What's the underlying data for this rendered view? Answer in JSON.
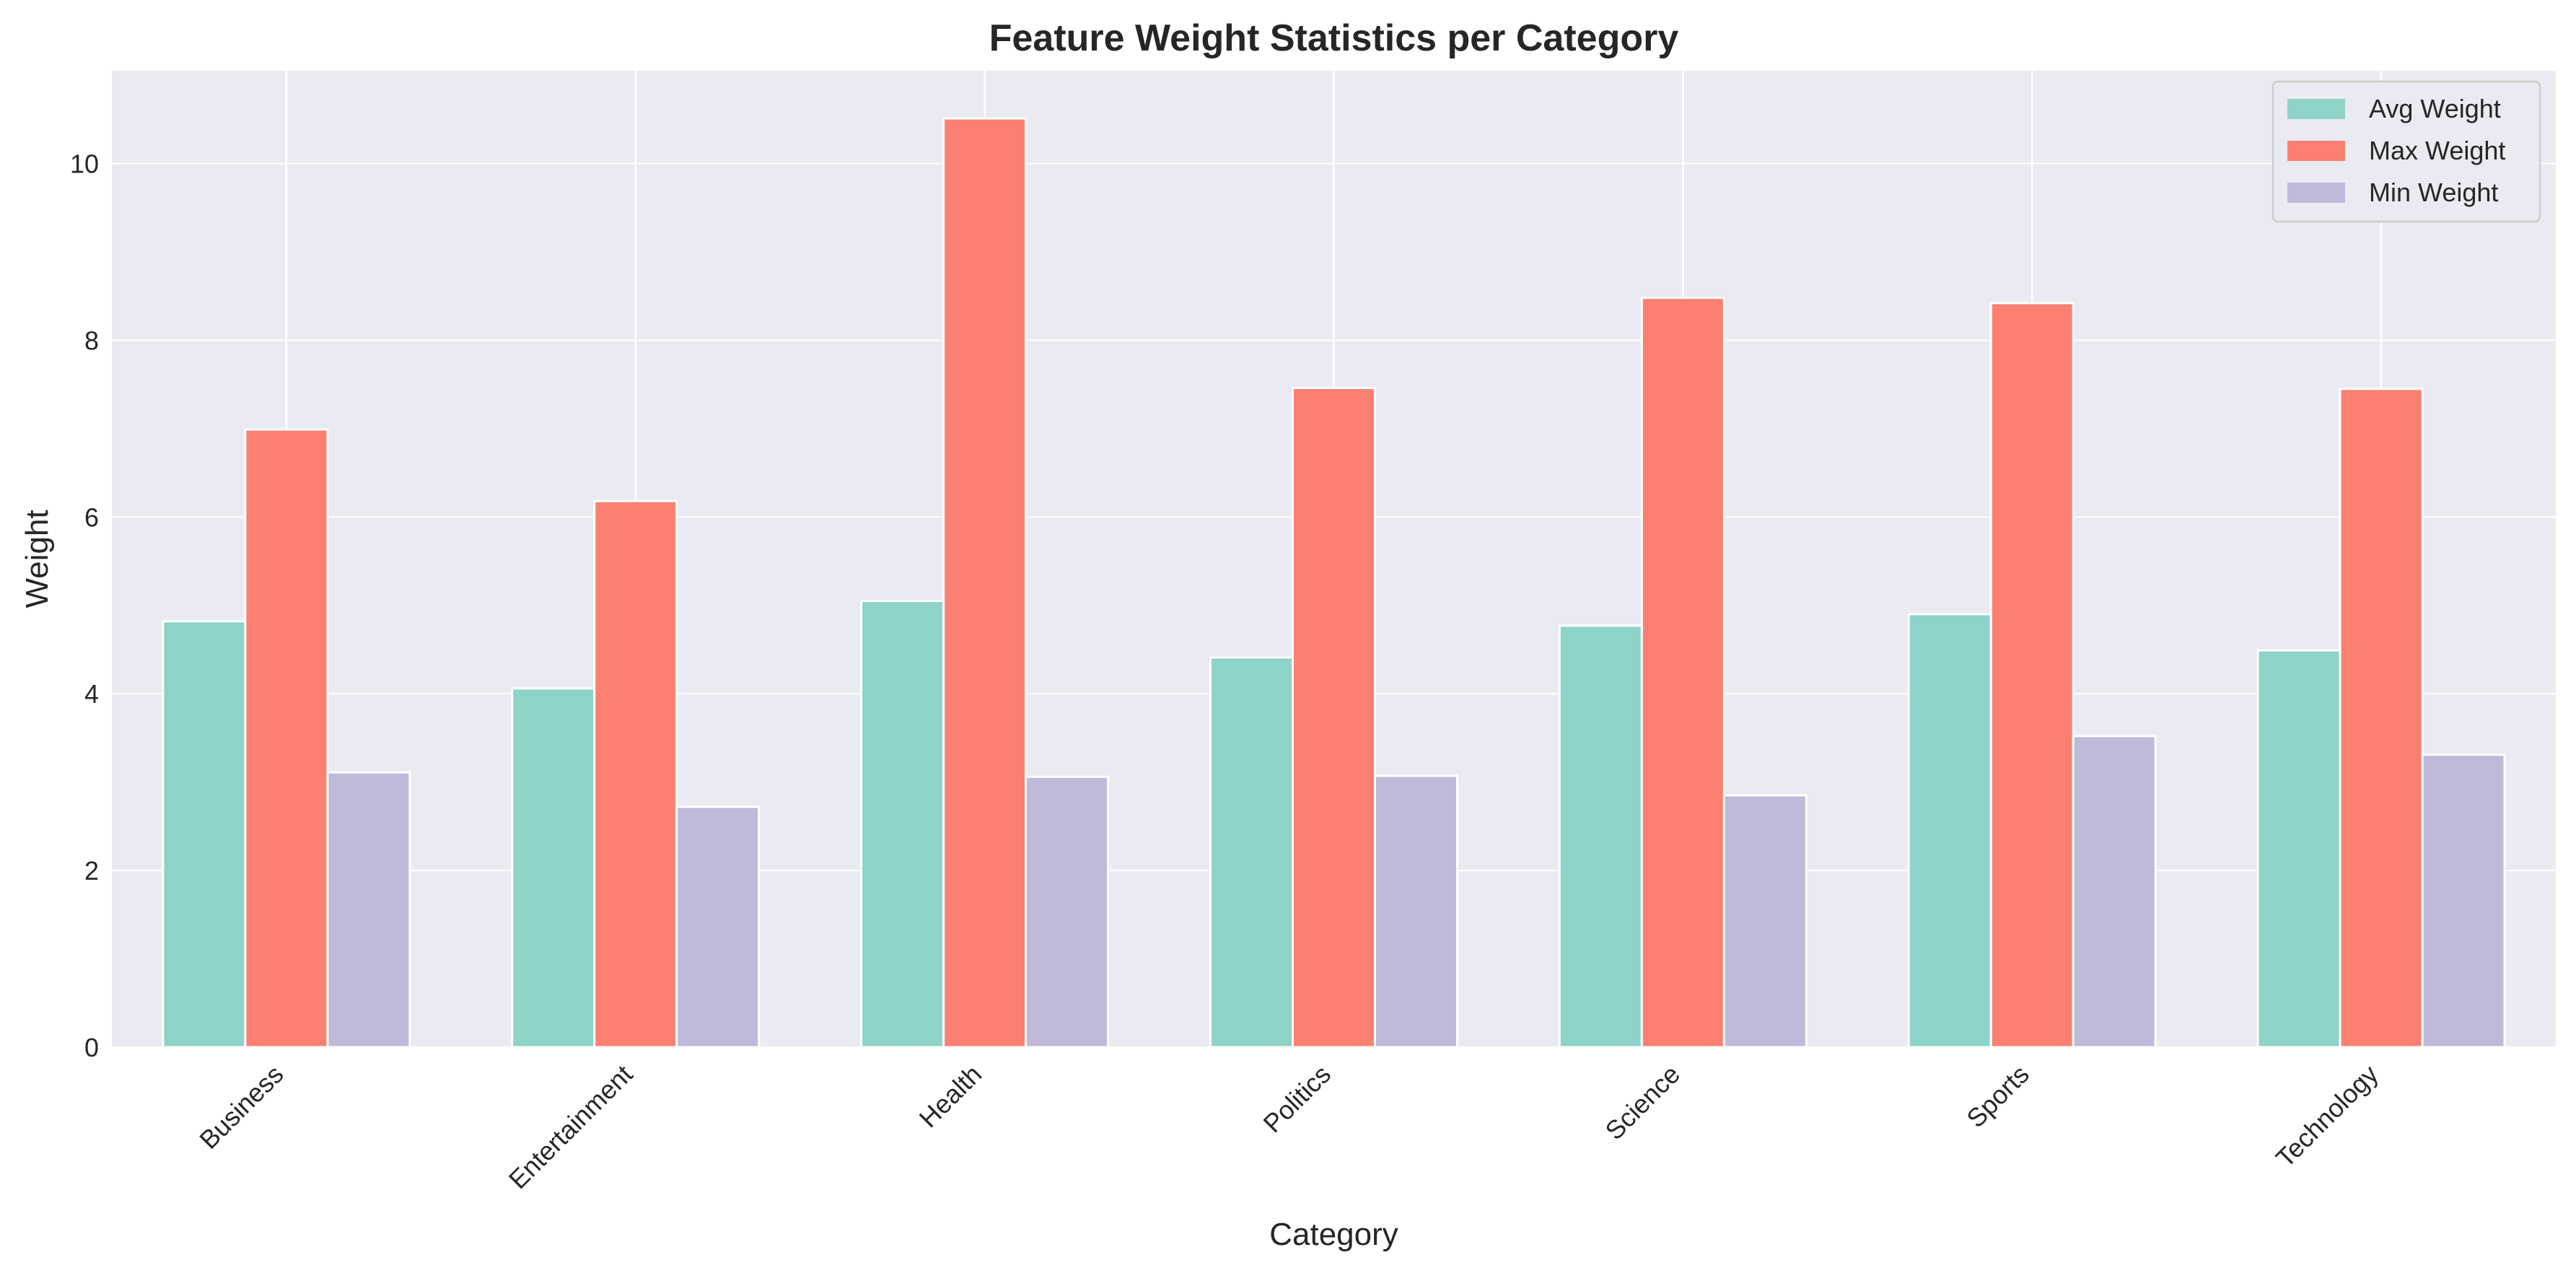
{
  "chart_data": {
    "type": "bar",
    "title": "Feature Weight Statistics per Category",
    "xlabel": "Category",
    "ylabel": "Weight",
    "categories": [
      "Business",
      "Entertainment",
      "Health",
      "Politics",
      "Science",
      "Sports",
      "Technology"
    ],
    "series": [
      {
        "name": "Avg Weight",
        "color": "#8dd3c7",
        "values": [
          4.82,
          4.06,
          5.05,
          4.41,
          4.77,
          4.9,
          4.49
        ]
      },
      {
        "name": "Max Weight",
        "color": "#fb8072",
        "values": [
          6.99,
          6.18,
          10.51,
          7.46,
          8.48,
          8.42,
          7.45
        ]
      },
      {
        "name": "Min Weight",
        "color": "#bebada",
        "values": [
          3.11,
          2.72,
          3.06,
          3.07,
          2.85,
          3.52,
          3.31
        ]
      }
    ],
    "ylim": [
      0,
      11.05
    ],
    "yticks": [
      0,
      2,
      4,
      6,
      8,
      10
    ],
    "grid": true,
    "legend_position": "top-right",
    "plot_background": "#eaeaf2"
  }
}
